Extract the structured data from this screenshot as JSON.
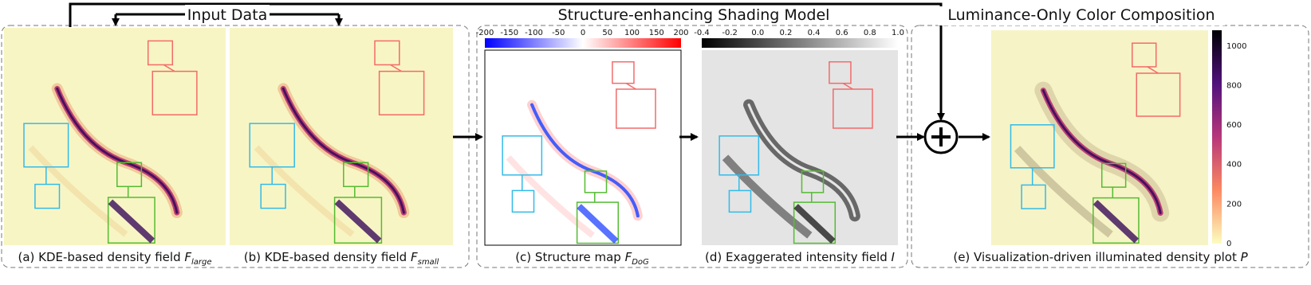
{
  "header": {
    "input": "Input Data",
    "shading": "Structure-enhancing Shading Model",
    "composition": "Luminance-Only Color Composition"
  },
  "panels": [
    {
      "prefix": "(a) KDE-based density field ",
      "symbol": "F",
      "sub": "large"
    },
    {
      "prefix": "(b) KDE-based density field ",
      "symbol": "F",
      "sub": "small"
    },
    {
      "prefix": "(c) Structure map ",
      "symbol": "F",
      "sub": "DoG"
    },
    {
      "prefix": "(d) Exaggerated intensity field ",
      "symbol": "I",
      "sub": ""
    },
    {
      "prefix": "(e) Visualization-driven illuminated density plot ",
      "symbol": "P",
      "sub": ""
    }
  ],
  "colorbars": [
    {
      "ticks": [
        "-200",
        "-150",
        "-100",
        "-50",
        "0",
        "50",
        "100",
        "150",
        "200"
      ]
    },
    {
      "ticks": [
        "-0.4",
        "-0.2",
        "0.0",
        "0.2",
        "0.4",
        "0.6",
        "0.8",
        "1.0"
      ]
    },
    {
      "ticks": [
        "0",
        "200",
        "400",
        "600",
        "800",
        "1000"
      ]
    }
  ]
}
